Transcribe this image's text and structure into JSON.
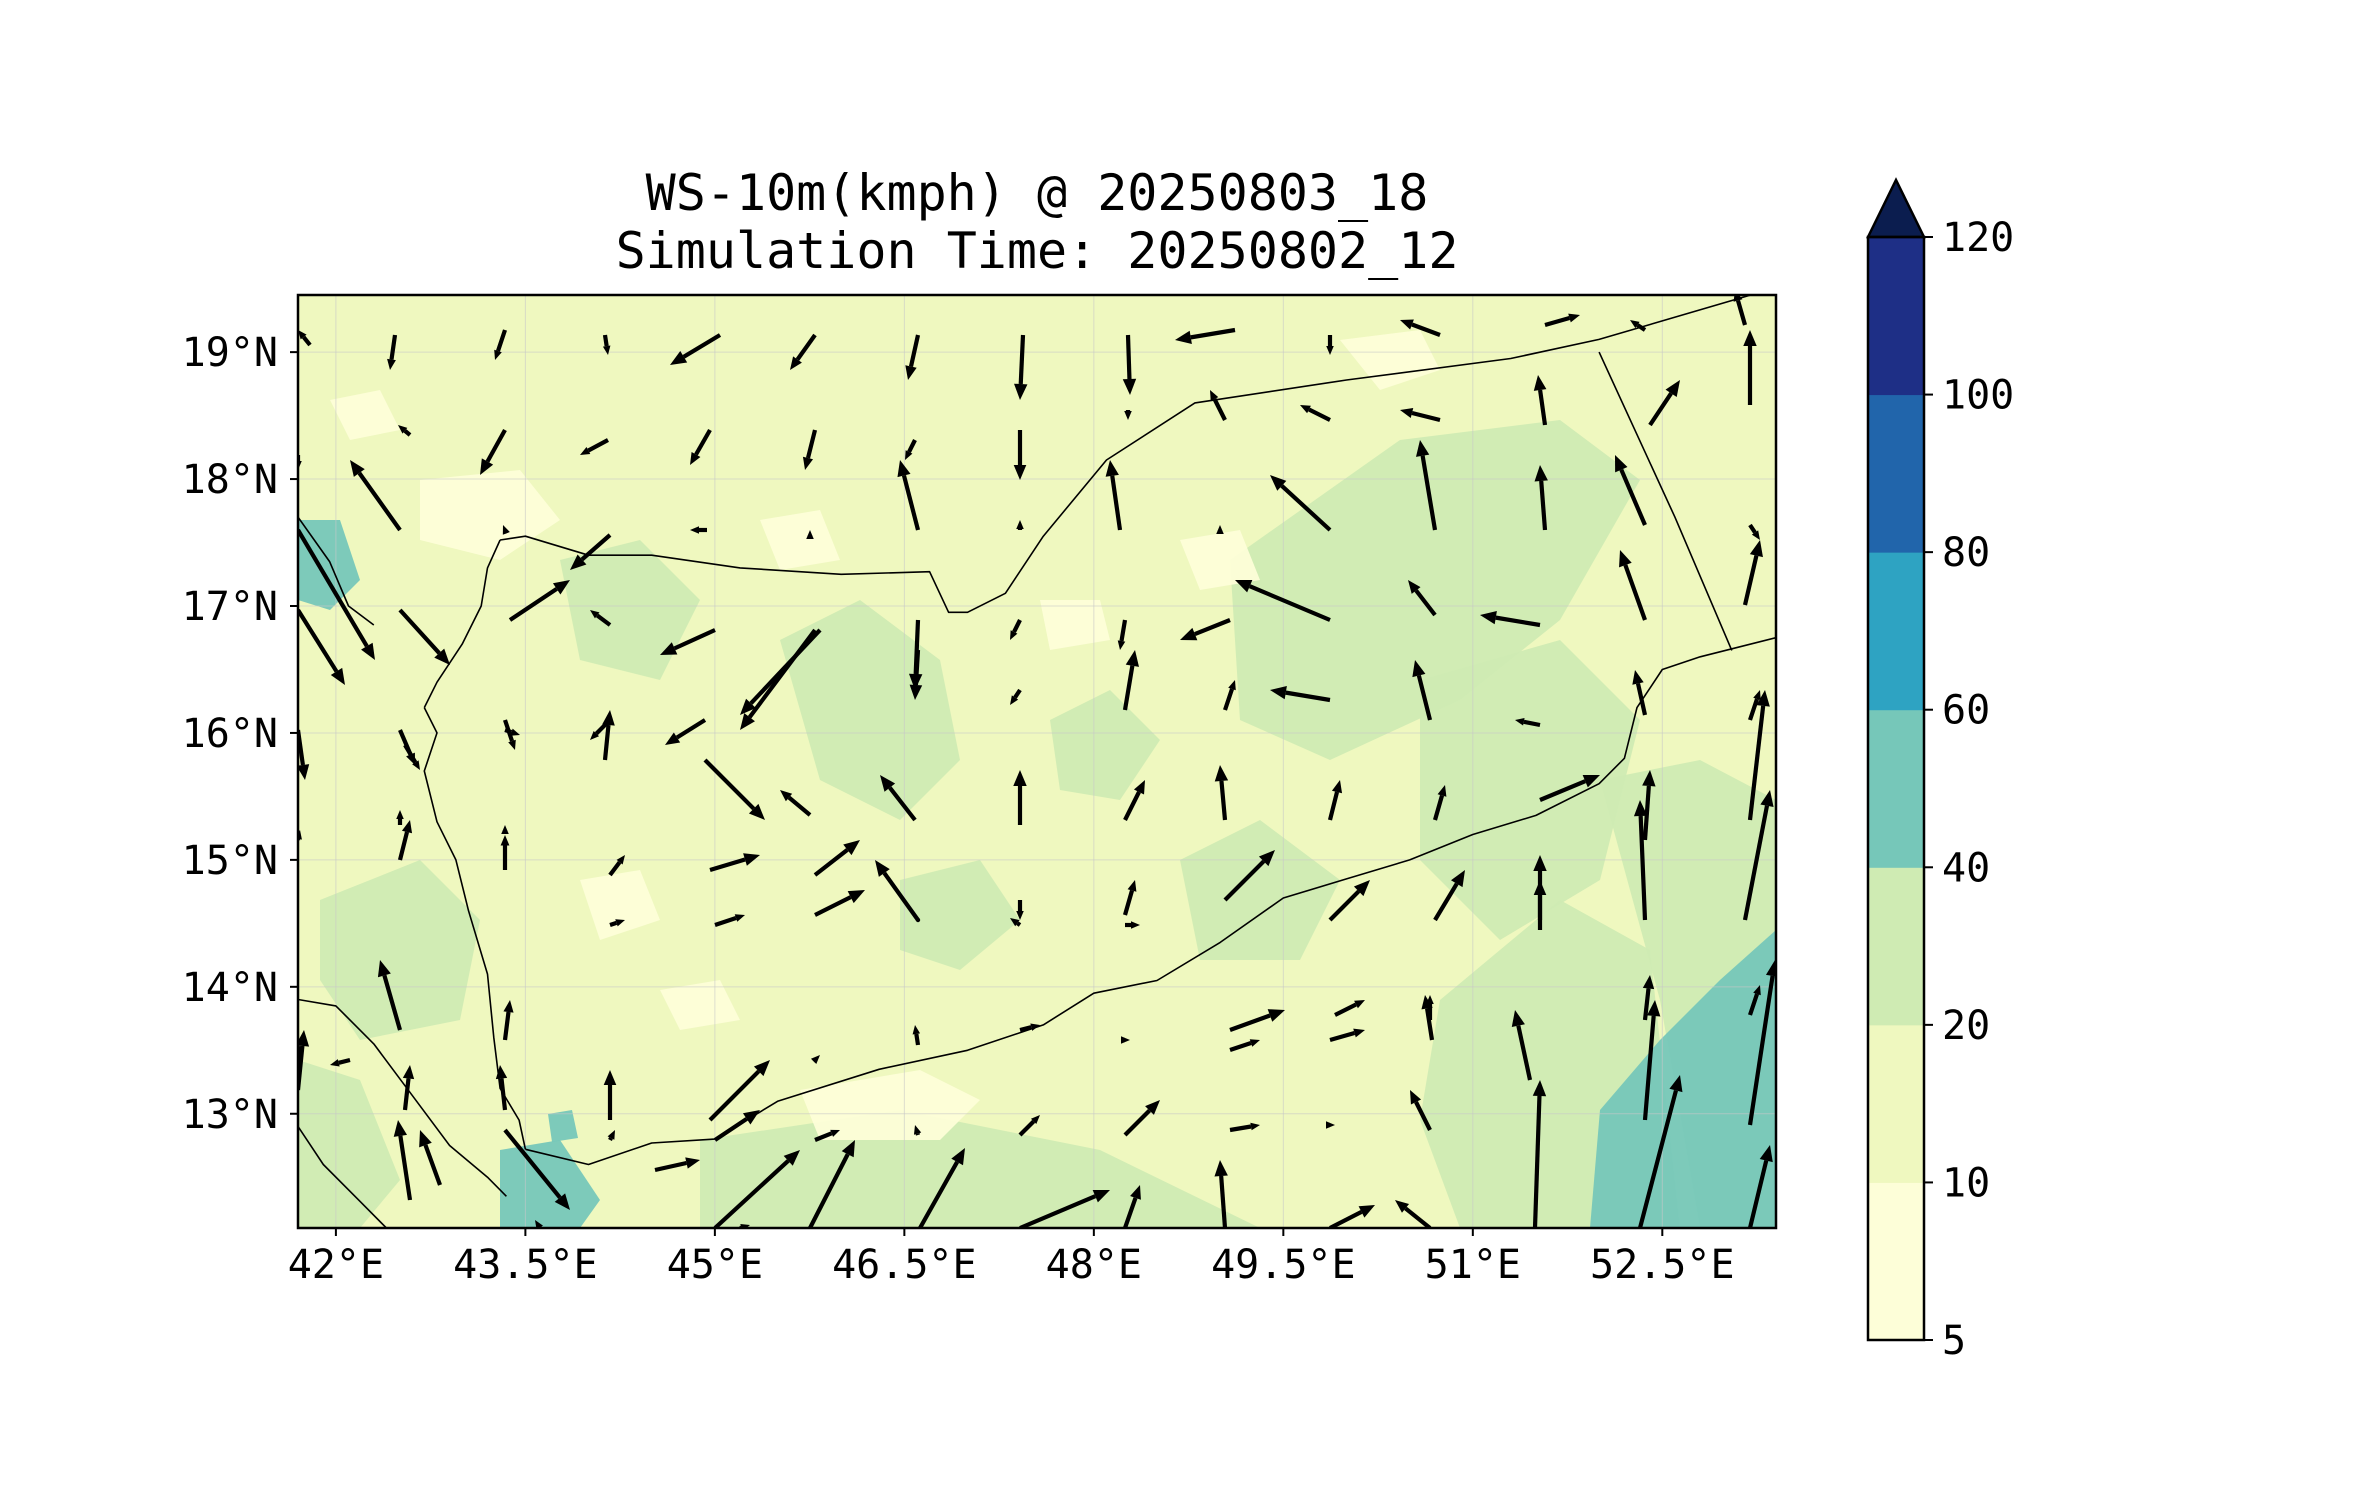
{
  "title": {
    "line1": "WS-10m(kmph) @ 20250803_18",
    "line2": "Simulation Time: 20250802_12"
  },
  "map": {
    "lon_range": [
      41.7,
      53.4
    ],
    "lat_range": [
      12.1,
      19.45
    ],
    "lon_ticks": [
      {
        "value": 42,
        "label": "42°E"
      },
      {
        "value": 43.5,
        "label": "43.5°E"
      },
      {
        "value": 45,
        "label": "45°E"
      },
      {
        "value": 46.5,
        "label": "46.5°E"
      },
      {
        "value": 48,
        "label": "48°E"
      },
      {
        "value": 49.5,
        "label": "49.5°E"
      },
      {
        "value": 51,
        "label": "51°E"
      },
      {
        "value": 52.5,
        "label": "52.5°E"
      }
    ],
    "lat_ticks": [
      {
        "value": 19,
        "label": "19°N"
      },
      {
        "value": 18,
        "label": "18°N"
      },
      {
        "value": 17,
        "label": "17°N"
      },
      {
        "value": 16,
        "label": "16°N"
      },
      {
        "value": 15,
        "label": "15°N"
      },
      {
        "value": 14,
        "label": "14°N"
      },
      {
        "value": 13,
        "label": "13°N"
      }
    ],
    "gridlines": true
  },
  "colorbar": {
    "levels": [
      "5",
      "10",
      "20",
      "40",
      "60",
      "80",
      "100",
      "120"
    ],
    "colors": [
      "#fdfed8",
      "#eff8bf",
      "#cfebb3",
      "#76c7b9",
      "#2ea3c2",
      "#2165ab",
      "#1e2f86"
    ],
    "extend_color": "#0b1d4f",
    "extend": "max"
  },
  "colors": {
    "background_field": "#eff8bf",
    "coast_line": "#000000",
    "vector": "#000000"
  }
}
